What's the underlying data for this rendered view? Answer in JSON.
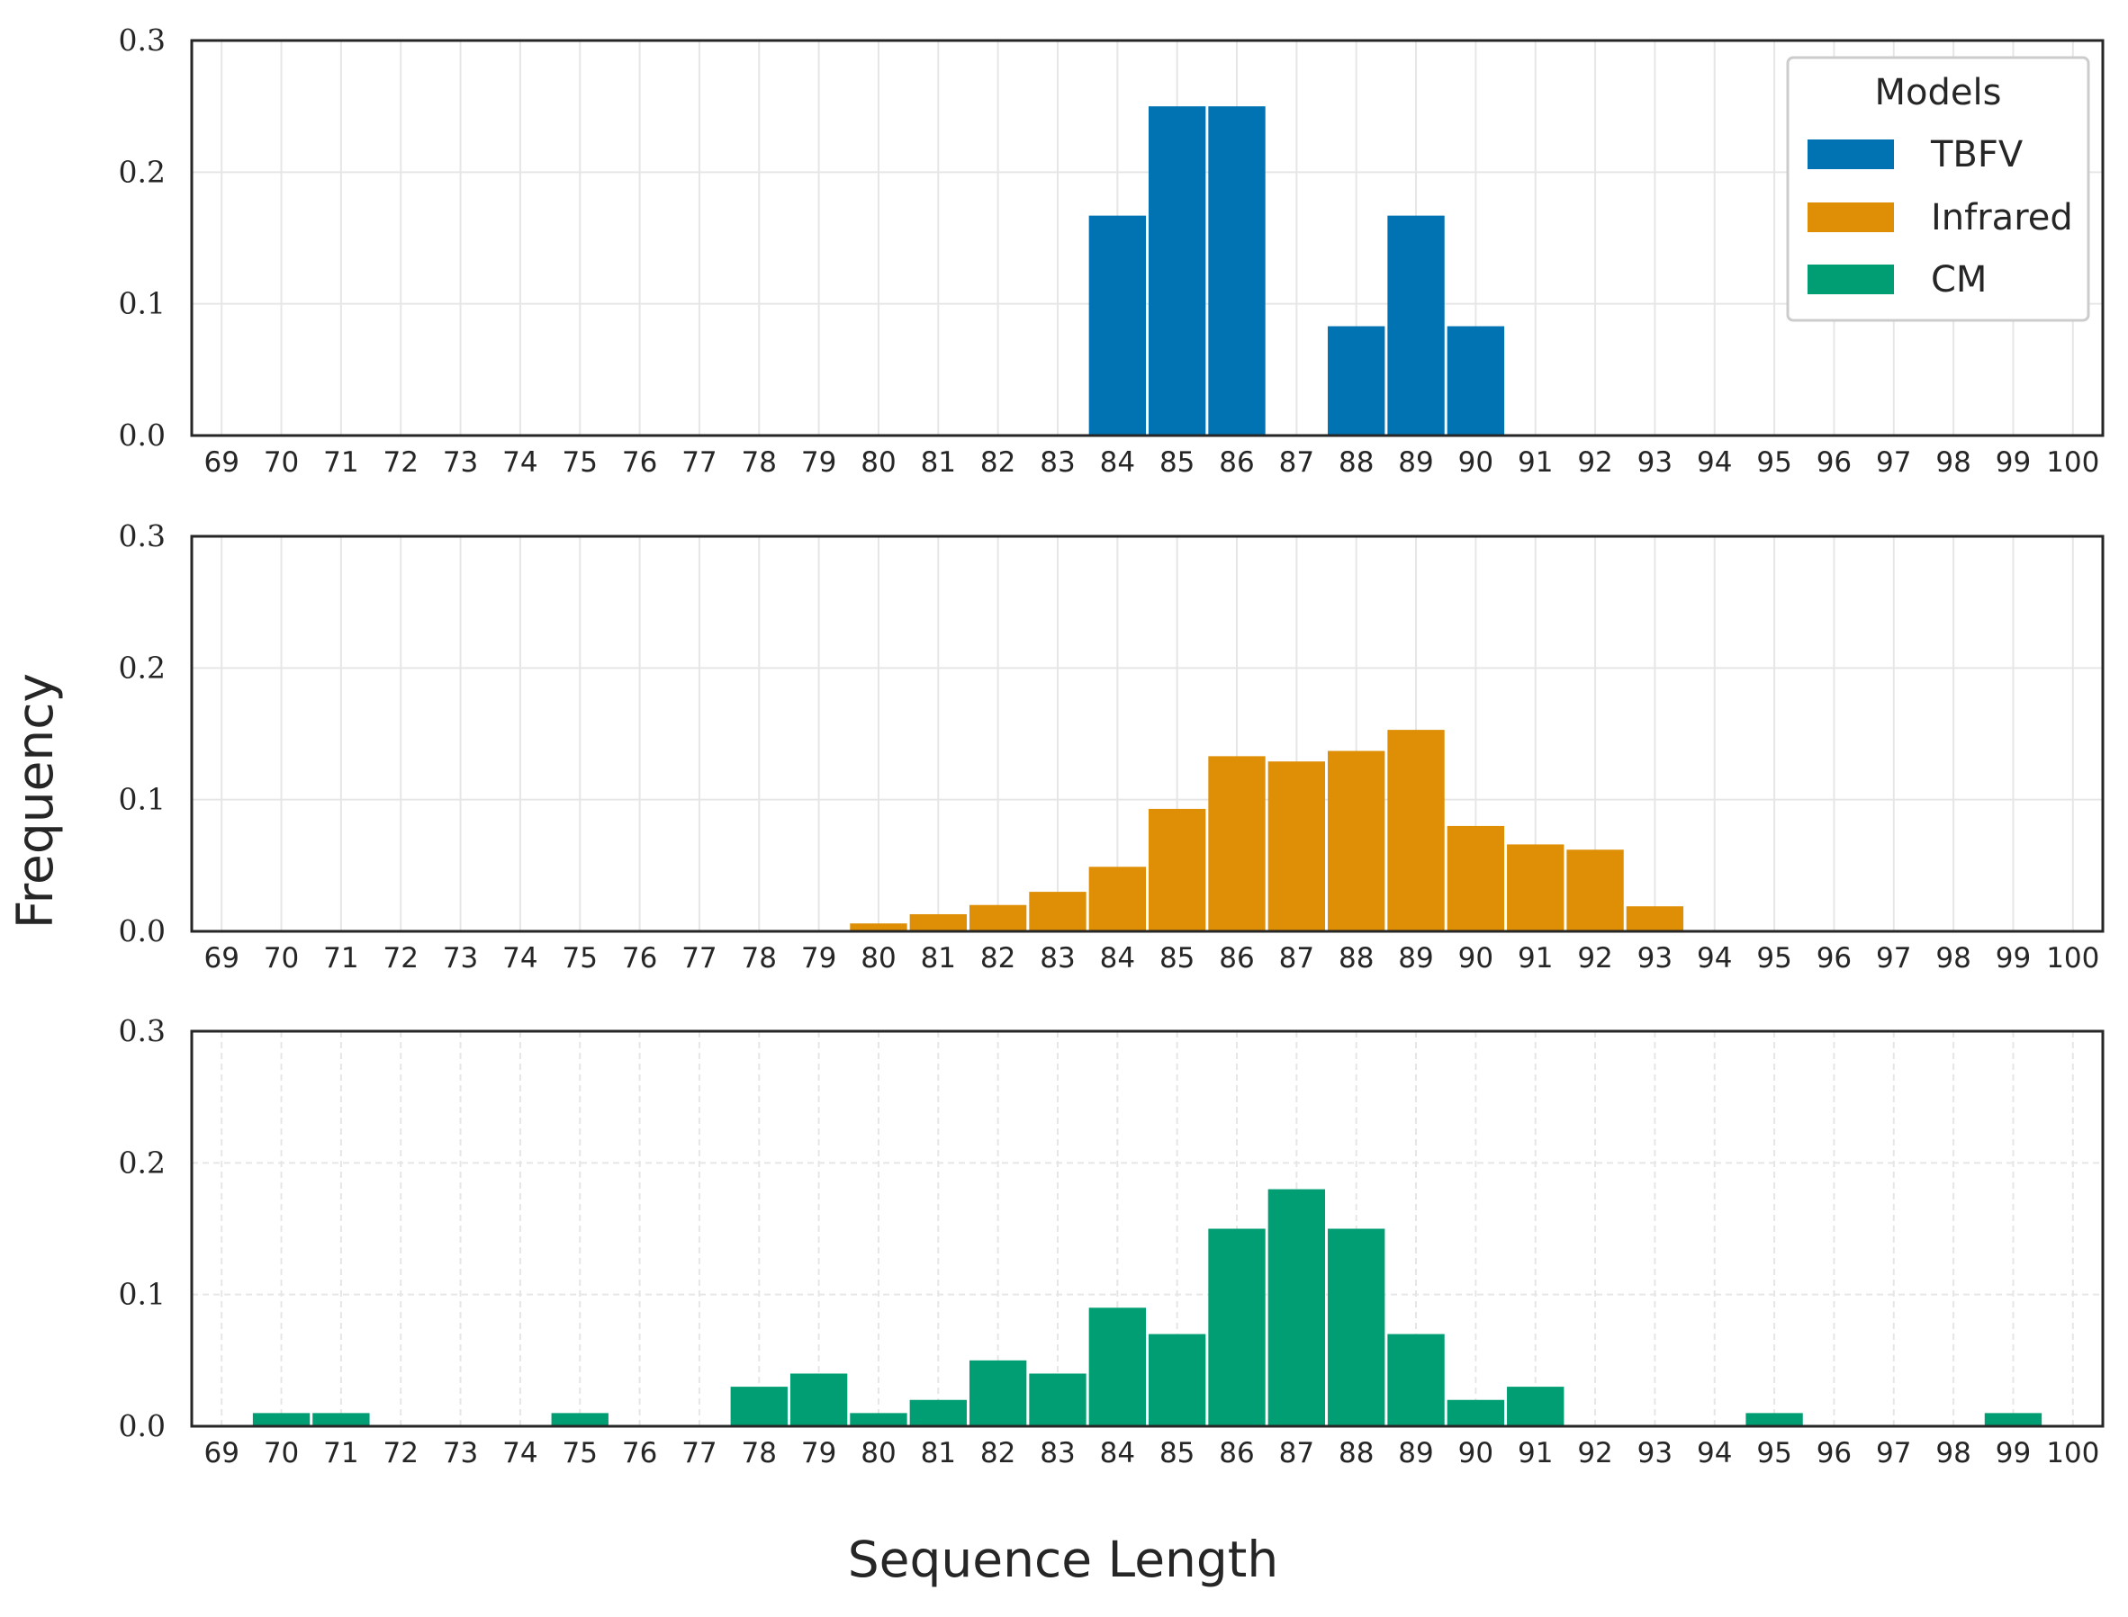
{
  "figure": {
    "xlabel": "Sequence Length",
    "ylabel": "Frequency"
  },
  "legend": {
    "title": "Models",
    "position": "top-right",
    "entries": [
      {
        "label": "TBFV",
        "color": "#0173b2"
      },
      {
        "label": "Infrared",
        "color": "#de8f05"
      },
      {
        "label": "CM",
        "color": "#029e73"
      }
    ]
  },
  "chart_data": [
    {
      "type": "bar",
      "series_name": "TBFV",
      "color": "#0173b2",
      "grid": "solid",
      "xlim": [
        69,
        100
      ],
      "ylim": [
        0,
        0.3
      ],
      "yticks": [
        "0.0",
        "0.1",
        "0.2",
        "0.3"
      ],
      "categories": [
        69,
        70,
        71,
        72,
        73,
        74,
        75,
        76,
        77,
        78,
        79,
        80,
        81,
        82,
        83,
        84,
        85,
        86,
        87,
        88,
        89,
        90,
        91,
        92,
        93,
        94,
        95,
        96,
        97,
        98,
        99,
        100
      ],
      "values": [
        0,
        0,
        0,
        0,
        0,
        0,
        0,
        0,
        0,
        0,
        0,
        0,
        0,
        0,
        0,
        0.167,
        0.25,
        0.25,
        0,
        0.083,
        0.167,
        0.083,
        0,
        0,
        0,
        0,
        0,
        0,
        0,
        0,
        0,
        0
      ]
    },
    {
      "type": "bar",
      "series_name": "Infrared",
      "color": "#de8f05",
      "grid": "solid",
      "xlim": [
        69,
        100
      ],
      "ylim": [
        0,
        0.3
      ],
      "yticks": [
        "0.0",
        "0.1",
        "0.2",
        "0.3"
      ],
      "categories": [
        69,
        70,
        71,
        72,
        73,
        74,
        75,
        76,
        77,
        78,
        79,
        80,
        81,
        82,
        83,
        84,
        85,
        86,
        87,
        88,
        89,
        90,
        91,
        92,
        93,
        94,
        95,
        96,
        97,
        98,
        99,
        100
      ],
      "values": [
        0,
        0,
        0,
        0,
        0,
        0,
        0,
        0,
        0,
        0,
        0,
        0.006,
        0.013,
        0.02,
        0.03,
        0.049,
        0.093,
        0.133,
        0.129,
        0.137,
        0.153,
        0.08,
        0.066,
        0.062,
        0.019,
        0,
        0,
        0,
        0,
        0,
        0,
        0
      ]
    },
    {
      "type": "bar",
      "series_name": "CM",
      "color": "#029e73",
      "grid": "dashed",
      "xlim": [
        69,
        100
      ],
      "ylim": [
        0,
        0.3
      ],
      "yticks": [
        "0.0",
        "0.1",
        "0.2",
        "0.3"
      ],
      "categories": [
        69,
        70,
        71,
        72,
        73,
        74,
        75,
        76,
        77,
        78,
        79,
        80,
        81,
        82,
        83,
        84,
        85,
        86,
        87,
        88,
        89,
        90,
        91,
        92,
        93,
        94,
        95,
        96,
        97,
        98,
        99,
        100
      ],
      "values": [
        0,
        0.01,
        0.01,
        0,
        0,
        0,
        0.01,
        0,
        0,
        0.03,
        0.04,
        0.01,
        0.02,
        0.05,
        0.04,
        0.09,
        0.07,
        0.15,
        0.18,
        0.15,
        0.07,
        0.02,
        0.03,
        0,
        0,
        0,
        0.01,
        0,
        0,
        0,
        0.01,
        0
      ]
    }
  ]
}
